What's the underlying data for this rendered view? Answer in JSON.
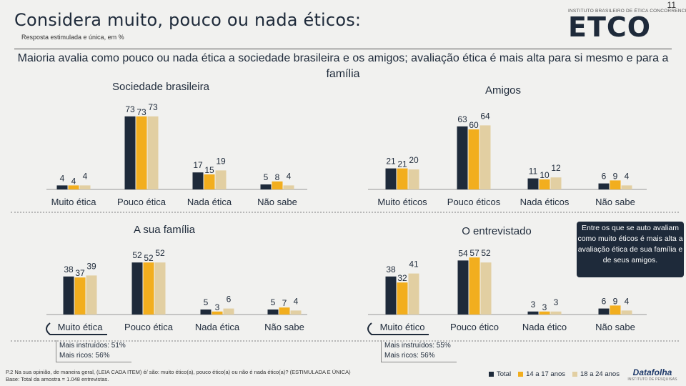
{
  "page_number": "11",
  "title": "Considera muito, pouco ou nada éticos:",
  "subtitle": "Resposta estimulada e única, em %",
  "logo": {
    "org_name": "INSTITUTO BRASILEIRO DE ÉTICA CONCORRENCIAL",
    "wordmark": "ETCO"
  },
  "headline": "Maioria avalia como pouco ou nada ética a sociedade brasileira e os amigos; avaliação ética é mais alta para si mesmo e para a família",
  "colors": {
    "total": "#1e2a3a",
    "age14_17": "#f2ae1e",
    "age18_24": "#e2cfa2"
  },
  "chart_data": [
    {
      "type": "bar",
      "title": "Sociedade brasileira",
      "categories": [
        "Muito ética",
        "Pouco ética",
        "Nada ética",
        "Não sabe"
      ],
      "series": [
        {
          "name": "Total",
          "values": [
            4,
            73,
            17,
            5
          ]
        },
        {
          "name": "14 a 17 anos",
          "values": [
            4,
            73,
            15,
            8
          ]
        },
        {
          "name": "18 a 24 anos",
          "values": [
            4,
            73,
            19,
            4
          ]
        }
      ],
      "ylim": [
        0,
        80
      ]
    },
    {
      "type": "bar",
      "title": "Amigos",
      "categories": [
        "Muito éticos",
        "Pouco éticos",
        "Nada éticos",
        "Não sabe"
      ],
      "series": [
        {
          "name": "Total",
          "values": [
            21,
            63,
            11,
            6
          ]
        },
        {
          "name": "14 a 17 anos",
          "values": [
            21,
            60,
            10,
            9
          ]
        },
        {
          "name": "18 a 24 anos",
          "values": [
            20,
            64,
            12,
            4
          ]
        }
      ],
      "ylim": [
        0,
        80
      ]
    },
    {
      "type": "bar",
      "title": "A sua família",
      "categories": [
        "Muito ética",
        "Pouco ética",
        "Nada ética",
        "Não sabe"
      ],
      "series": [
        {
          "name": "Total",
          "values": [
            38,
            52,
            5,
            5
          ]
        },
        {
          "name": "14 a 17 anos",
          "values": [
            37,
            52,
            3,
            7
          ]
        },
        {
          "name": "18 a 24 anos",
          "values": [
            39,
            52,
            6,
            4
          ]
        }
      ],
      "ylim": [
        0,
        80
      ]
    },
    {
      "type": "bar",
      "title": "O entrevistado",
      "categories": [
        "Muito ético",
        "Pouco ético",
        "Nada ético",
        "Não sabe"
      ],
      "series": [
        {
          "name": "Total",
          "values": [
            38,
            54,
            3,
            6
          ]
        },
        {
          "name": "14 a 17 anos",
          "values": [
            32,
            57,
            3,
            9
          ]
        },
        {
          "name": "18 a 24 anos",
          "values": [
            41,
            52,
            3,
            4
          ]
        }
      ],
      "ylim": [
        0,
        80
      ]
    }
  ],
  "callout": "Entre os que se auto avaliam como muito éticos é mais alta a avaliação ética de sua família e de seus amigos.",
  "notes": {
    "familia": [
      "Mais instruídos: 51%",
      "Mais ricos: 56%"
    ],
    "entrevistado": [
      "Mais instruídos: 55%",
      "Mais ricos: 56%"
    ]
  },
  "footnote": {
    "question": "P.2 Na sua opinião, de maneira geral, (LEIA CADA ITEM) é/ são: muito ético(a), pouco ético(a) ou não é nada ético(a)? (ESTIMULADA E ÚNICA)",
    "base": "Base: Total da amostra = 1.048 entrevistas."
  },
  "legend": [
    "Total",
    "14 a 17 anos",
    "18 a 24 anos"
  ],
  "source_logo": {
    "wordmark": "Datafolha",
    "tagline": "INSTITUTO DE PESQUISAS"
  }
}
